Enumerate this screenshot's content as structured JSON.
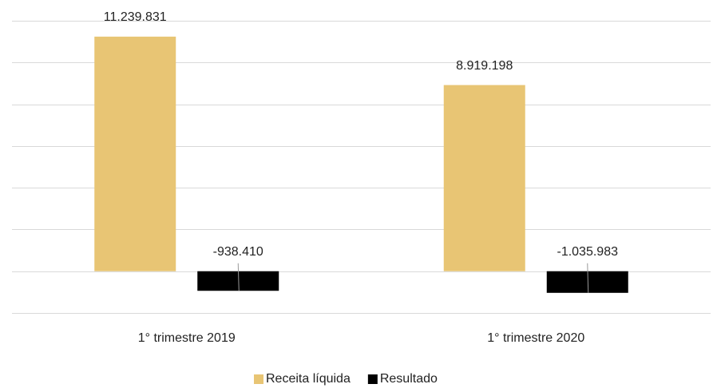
{
  "chart_data": {
    "type": "bar",
    "categories": [
      "1° trimestre 2019",
      "1° trimestre 2020"
    ],
    "series": [
      {
        "name": "Receita líquida",
        "color": "#e8c574",
        "values": [
          11239831,
          8919198
        ],
        "value_labels": [
          "11.239.831",
          "8.919.198"
        ]
      },
      {
        "name": "Resultado",
        "color": "#000000",
        "values": [
          -938410,
          -1035983
        ],
        "value_labels": [
          "-938.410",
          "-1.035.983"
        ]
      }
    ],
    "ylim": [
      -2000000,
      12000000
    ],
    "yticks": [
      -2000000,
      0,
      2000000,
      4000000,
      6000000,
      8000000,
      10000000,
      12000000
    ],
    "grid": true,
    "legend": "bottom"
  }
}
